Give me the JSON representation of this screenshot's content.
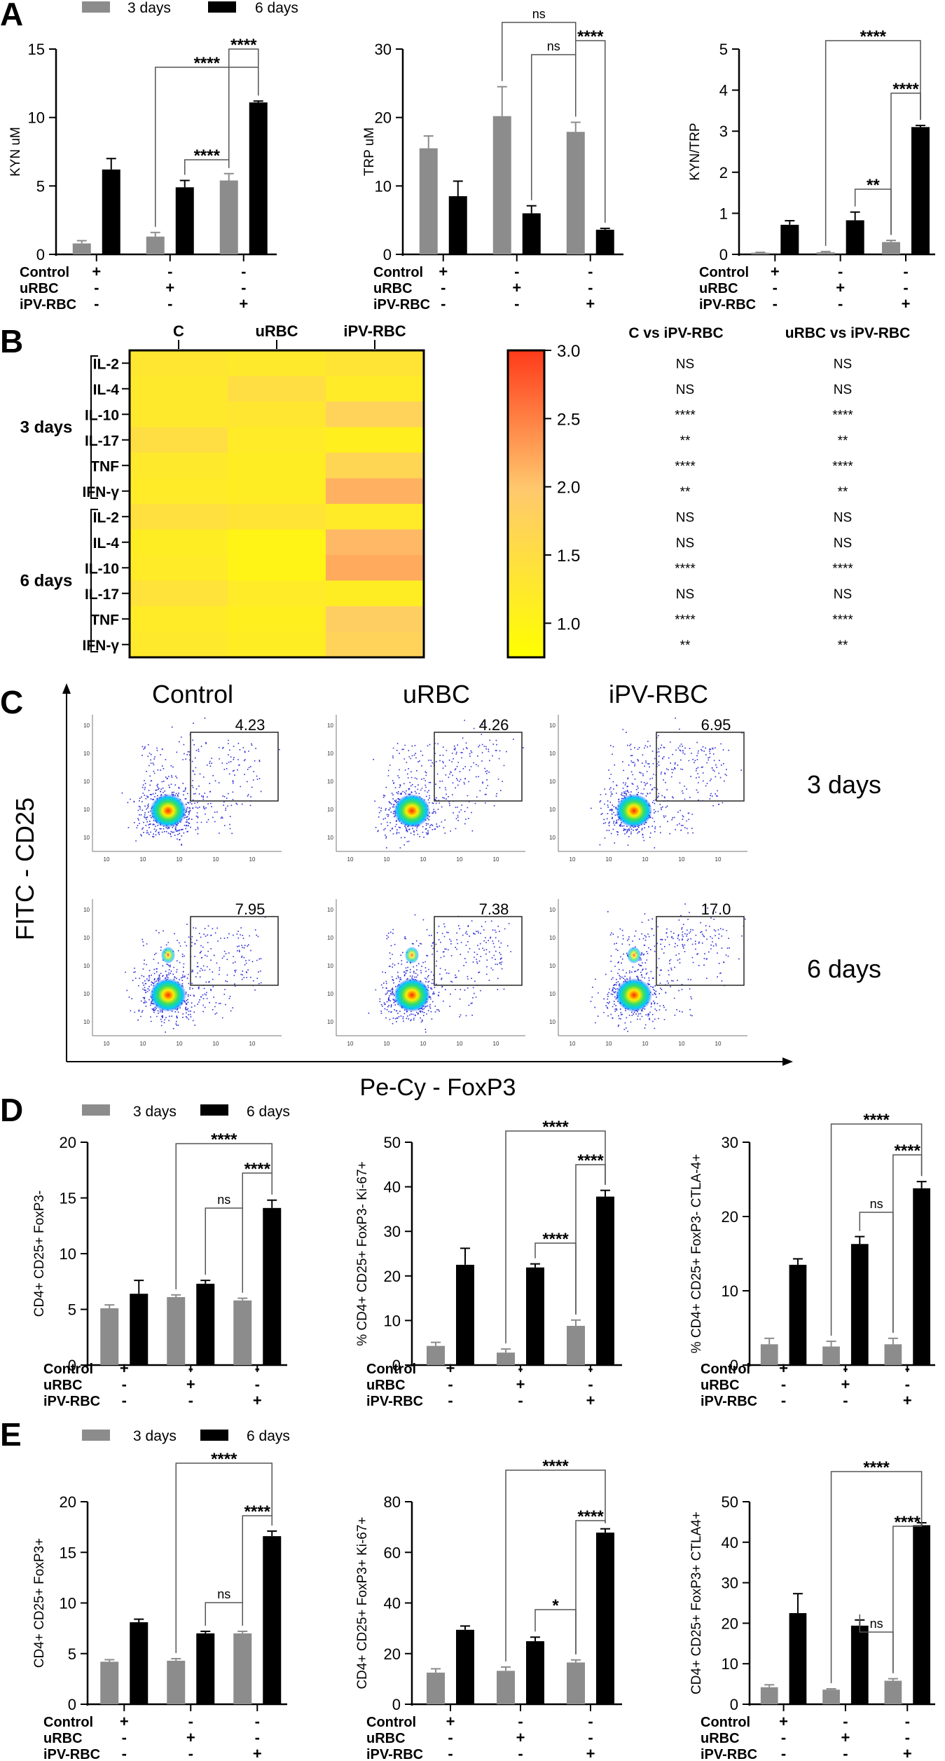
{
  "legend": {
    "series": [
      {
        "name": "3 days",
        "color": "#8c8c8c"
      },
      {
        "name": "6 days",
        "color": "#000000"
      }
    ]
  },
  "row_labels": [
    "Control",
    "uRBC",
    "iPV-RBC"
  ],
  "signs": [
    [
      "+",
      "-",
      "-"
    ],
    [
      "-",
      "+",
      "-"
    ],
    [
      "-",
      "-",
      "+"
    ]
  ],
  "panel_letters": {
    "A": "A",
    "B": "B",
    "C": "C",
    "D": "D",
    "E": "E"
  },
  "colors": {
    "gray": "#8c8c8c",
    "black": "#000000",
    "heat_low": "#ffff00",
    "heat_mid": "#ffc86e",
    "heat_high": "#ff3a1a"
  },
  "chart_data": [
    {
      "id": "A1",
      "type": "bar",
      "ylabel": "KYN uM",
      "ylim": [
        0,
        15
      ],
      "yticks": [
        0,
        5,
        10,
        15
      ],
      "categories": [
        "Control",
        "uRBC",
        "iPV-RBC"
      ],
      "series": [
        {
          "name": "3 days",
          "values": [
            0.8,
            1.3,
            5.4
          ],
          "errors": [
            0.2,
            0.3,
            0.5
          ]
        },
        {
          "name": "6 days",
          "values": [
            6.2,
            4.9,
            11.1
          ],
          "errors": [
            0.8,
            0.5,
            0.1
          ]
        }
      ],
      "brackets": [
        {
          "label": "****"
        },
        {
          "label": "****"
        },
        {
          "label": "****"
        }
      ]
    },
    {
      "id": "A2",
      "type": "bar",
      "ylabel": "TRP uM",
      "ylim": [
        0,
        30
      ],
      "yticks": [
        0,
        10,
        20,
        30
      ],
      "categories": [
        "Control",
        "uRBC",
        "iPV-RBC"
      ],
      "series": [
        {
          "name": "3 days",
          "values": [
            15.5,
            20.2,
            17.9
          ],
          "errors": [
            1.8,
            4.3,
            1.4
          ]
        },
        {
          "name": "6 days",
          "values": [
            8.5,
            6.0,
            3.6
          ],
          "errors": [
            2.2,
            1.1,
            0.2
          ]
        }
      ],
      "brackets": [
        {
          "label": "ns"
        },
        {
          "label": "****"
        },
        {
          "label": "ns"
        }
      ]
    },
    {
      "id": "A3",
      "type": "bar",
      "ylabel": "KYN/TRP",
      "ylim": [
        0,
        5
      ],
      "yticks": [
        0,
        1,
        2,
        3,
        4,
        5
      ],
      "categories": [
        "Control",
        "uRBC",
        "iPV-RBC"
      ],
      "series": [
        {
          "name": "3 days",
          "values": [
            0.04,
            0.05,
            0.3
          ],
          "errors": [
            0.01,
            0.02,
            0.04
          ]
        },
        {
          "name": "6 days",
          "values": [
            0.72,
            0.83,
            3.1
          ],
          "errors": [
            0.1,
            0.2,
            0.04
          ]
        }
      ],
      "brackets": [
        {
          "label": "**"
        },
        {
          "label": "****"
        },
        {
          "label": "****"
        }
      ]
    },
    {
      "id": "B",
      "type": "heatmap",
      "columns": [
        "C",
        "uRBC",
        "iPV-RBC"
      ],
      "groups": [
        {
          "label": "3 days",
          "rows": [
            "IL-2",
            "IL-4",
            "IL-10",
            "IL-17",
            "TNF",
            "IFN-γ"
          ]
        },
        {
          "label": "6 days",
          "rows": [
            "IL-2",
            "IL-4",
            "IL-10",
            "IL-17",
            "TNF",
            "IFN-γ"
          ]
        }
      ],
      "values": [
        [
          1.3,
          1.25,
          1.35
        ],
        [
          1.25,
          1.5,
          1.2
        ],
        [
          1.25,
          1.3,
          1.75
        ],
        [
          1.5,
          1.2,
          1.1
        ],
        [
          1.25,
          1.15,
          1.7
        ],
        [
          1.2,
          1.15,
          2.15
        ],
        [
          1.45,
          1.35,
          1.2
        ],
        [
          1.15,
          1.0,
          2.1
        ],
        [
          1.2,
          1.0,
          2.2
        ],
        [
          1.4,
          1.2,
          1.15
        ],
        [
          1.2,
          1.1,
          1.85
        ],
        [
          1.25,
          1.15,
          1.75
        ]
      ],
      "colorbar": {
        "min": 0.75,
        "max": 3.0,
        "ticks": [
          "3.0",
          "2.5",
          "2.0",
          "1.5",
          "1.0"
        ]
      },
      "stats_headers": [
        "C vs iPV-RBC",
        "uRBC vs iPV-RBC"
      ],
      "stats": [
        [
          "NS",
          "NS"
        ],
        [
          "NS",
          "NS"
        ],
        [
          "****",
          "****"
        ],
        [
          "**",
          "**"
        ],
        [
          "****",
          "****"
        ],
        [
          "**",
          "**"
        ],
        [
          "NS",
          "NS"
        ],
        [
          "NS",
          "NS"
        ],
        [
          "****",
          "****"
        ],
        [
          "NS",
          "NS"
        ],
        [
          "****",
          "****"
        ],
        [
          "**",
          "**"
        ]
      ]
    },
    {
      "id": "C",
      "type": "scatter",
      "columns": [
        "Control",
        "uRBC",
        "iPV-RBC"
      ],
      "rows": [
        "3 days",
        "6 days"
      ],
      "gates": [
        [
          "4.23",
          "4.26",
          "6.95"
        ],
        [
          "7.95",
          "7.38",
          "17.0"
        ]
      ],
      "ylabel": "FITC - CD25",
      "xlabel": "Pe-Cy - FoxP3",
      "tick_label": "10"
    },
    {
      "id": "D1",
      "type": "bar",
      "ylabel": "CD4+ CD25+ FoxP3-",
      "ylim": [
        0,
        20
      ],
      "yticks": [
        0,
        5,
        10,
        15,
        20
      ],
      "categories": [
        "Control",
        "uRBC",
        "iPV-RBC"
      ],
      "series": [
        {
          "name": "3 days",
          "values": [
            5.1,
            6.1,
            5.8
          ],
          "errors": [
            0.3,
            0.2,
            0.2
          ]
        },
        {
          "name": "6 days",
          "values": [
            6.4,
            7.3,
            14.1
          ],
          "errors": [
            1.2,
            0.3,
            0.7
          ]
        }
      ],
      "brackets": [
        {
          "label": "ns"
        },
        {
          "label": "****"
        },
        {
          "label": "****"
        }
      ]
    },
    {
      "id": "D2",
      "type": "bar",
      "ylabel": "% CD4+ CD25+ FoxP3- Ki-67+",
      "ylim": [
        0,
        50
      ],
      "yticks": [
        0,
        10,
        20,
        30,
        40,
        50
      ],
      "categories": [
        "Control",
        "uRBC",
        "iPV-RBC"
      ],
      "series": [
        {
          "name": "3 days",
          "values": [
            4.3,
            2.8,
            8.8
          ],
          "errors": [
            0.8,
            0.8,
            1.3
          ]
        },
        {
          "name": "6 days",
          "values": [
            22.5,
            21.9,
            37.8
          ],
          "errors": [
            3.7,
            0.8,
            1.4
          ]
        }
      ],
      "brackets": [
        {
          "label": "****"
        },
        {
          "label": "****"
        },
        {
          "label": "****"
        }
      ]
    },
    {
      "id": "D3",
      "type": "bar",
      "ylabel": "% CD4+ CD25+ FoxP3- CTLA-4+",
      "ylim": [
        0,
        30
      ],
      "yticks": [
        0,
        10,
        20,
        30
      ],
      "categories": [
        "Control",
        "uRBC",
        "iPV-RBC"
      ],
      "series": [
        {
          "name": "3 days",
          "values": [
            2.8,
            2.5,
            2.8
          ],
          "errors": [
            0.8,
            0.7,
            0.8
          ]
        },
        {
          "name": "6 days",
          "values": [
            13.5,
            16.3,
            23.8
          ],
          "errors": [
            0.8,
            1.0,
            0.9
          ]
        }
      ],
      "brackets": [
        {
          "label": "ns"
        },
        {
          "label": "****"
        },
        {
          "label": "****"
        }
      ]
    },
    {
      "id": "E1",
      "type": "bar",
      "ylabel": "CD4+ CD25+ FoxP3+",
      "ylim": [
        0,
        20
      ],
      "yticks": [
        0,
        5,
        10,
        15,
        20
      ],
      "categories": [
        "Control",
        "uRBC",
        "iPV-RBC"
      ],
      "series": [
        {
          "name": "3 days",
          "values": [
            4.2,
            4.3,
            7.0
          ],
          "errors": [
            0.2,
            0.2,
            0.2
          ]
        },
        {
          "name": "6 days",
          "values": [
            8.1,
            7.0,
            16.6
          ],
          "errors": [
            0.3,
            0.2,
            0.5
          ]
        }
      ],
      "brackets": [
        {
          "label": "ns"
        },
        {
          "label": "****"
        },
        {
          "label": "****"
        }
      ]
    },
    {
      "id": "E2",
      "type": "bar",
      "ylabel": "CD4+ CD25+ FoxP3+ Ki-67+",
      "ylim": [
        0,
        80
      ],
      "yticks": [
        0,
        20,
        40,
        60,
        80
      ],
      "categories": [
        "Control",
        "uRBC",
        "iPV-RBC"
      ],
      "series": [
        {
          "name": "3 days",
          "values": [
            12.5,
            13.2,
            16.5
          ],
          "errors": [
            1.5,
            1.5,
            1.0
          ]
        },
        {
          "name": "6 days",
          "values": [
            29.4,
            24.9,
            67.8
          ],
          "errors": [
            1.5,
            1.6,
            1.5
          ]
        }
      ],
      "brackets": [
        {
          "label": "*"
        },
        {
          "label": "****"
        },
        {
          "label": "****"
        }
      ]
    },
    {
      "id": "E3",
      "type": "bar",
      "ylabel": "CD4+ CD25+ FoxP3+ CTLA4+",
      "ylim": [
        0,
        50
      ],
      "yticks": [
        0,
        10,
        20,
        30,
        40,
        50
      ],
      "categories": [
        "Control",
        "uRBC",
        "iPV-RBC"
      ],
      "series": [
        {
          "name": "3 days",
          "values": [
            4.2,
            3.6,
            5.8
          ],
          "errors": [
            0.6,
            0.2,
            0.5
          ]
        },
        {
          "name": "6 days",
          "values": [
            22.5,
            19.4,
            44.2
          ],
          "errors": [
            4.8,
            1.4,
            0.6
          ]
        }
      ],
      "brackets": [
        {
          "label": "ns"
        },
        {
          "label": "****"
        },
        {
          "label": "****"
        }
      ]
    }
  ]
}
